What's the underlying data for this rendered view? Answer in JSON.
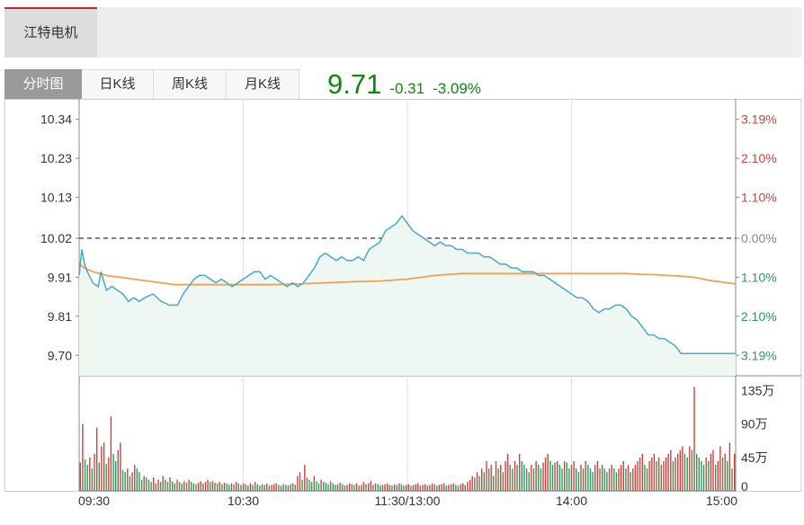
{
  "stock": {
    "name": "江特电机"
  },
  "tabs": [
    {
      "label": "分时图",
      "active": true
    },
    {
      "label": "日K线",
      "active": false
    },
    {
      "label": "周K线",
      "active": false
    },
    {
      "label": "月K线",
      "active": false
    }
  ],
  "quote": {
    "price": "9.71",
    "change": "-0.31",
    "change_pct": "-3.09%"
  },
  "colors": {
    "price_line": "#4aa8c8",
    "avg_line": "#f0a050",
    "up": "#d0403a",
    "down": "#2a9a5a",
    "grid": "#e0e0e0",
    "prev_close_line": "#555555"
  },
  "chart_data": {
    "type": "line",
    "price_axis": {
      "ylim": [
        9.65,
        10.39
      ],
      "left_ticks": [
        "10.34",
        "10.23",
        "10.13",
        "10.02",
        "9.91",
        "9.81",
        "9.70"
      ],
      "left_tick_values": [
        10.34,
        10.235,
        10.13,
        10.02,
        9.915,
        9.81,
        9.705
      ],
      "right_ticks": [
        {
          "label": "3.19%",
          "color": "up"
        },
        {
          "label": "2.10%",
          "color": "up"
        },
        {
          "label": "1.10%",
          "color": "up"
        },
        {
          "label": "0.00%",
          "color": "neutral"
        },
        {
          "label": "1.10%",
          "color": "down"
        },
        {
          "label": "2.10%",
          "color": "down"
        },
        {
          "label": "3.19%",
          "color": "down"
        }
      ],
      "prev_close": 10.02
    },
    "time_axis": {
      "labels": [
        "09:30",
        "10:30",
        "11:30/13:00",
        "14:00",
        "15:00"
      ],
      "label_minutes": [
        0,
        60,
        120,
        180,
        240
      ],
      "total_minutes": 240
    },
    "series": [
      {
        "key": "price",
        "x": [
          0,
          1,
          2,
          3,
          5,
          7,
          8,
          10,
          12,
          14,
          16,
          18,
          20,
          22,
          24,
          27,
          30,
          33,
          36,
          38,
          40,
          42,
          44,
          46,
          48,
          50,
          52,
          54,
          56,
          58,
          60,
          62,
          64,
          66,
          68,
          70,
          72,
          74,
          76,
          78,
          80,
          82,
          84,
          86,
          88,
          90,
          92,
          94,
          96,
          98,
          100,
          102,
          104,
          106,
          108,
          110,
          112,
          114,
          116,
          118,
          120,
          122,
          124,
          126,
          128,
          130,
          132,
          134,
          136,
          138,
          140,
          142,
          144,
          146,
          148,
          150,
          152,
          154,
          156,
          158,
          160,
          162,
          164,
          166,
          168,
          170,
          172,
          174,
          176,
          178,
          180,
          182,
          184,
          186,
          188,
          190,
          192,
          194,
          196,
          198,
          200,
          202,
          204,
          206,
          208,
          210,
          212,
          214,
          216,
          218,
          220,
          222,
          224,
          226,
          228,
          230,
          232,
          234,
          236,
          238,
          240
        ],
        "values": [
          9.92,
          9.99,
          9.95,
          9.93,
          9.9,
          9.89,
          9.93,
          9.88,
          9.89,
          9.88,
          9.87,
          9.85,
          9.86,
          9.85,
          9.86,
          9.87,
          9.85,
          9.84,
          9.84,
          9.87,
          9.89,
          9.91,
          9.92,
          9.92,
          9.91,
          9.9,
          9.91,
          9.9,
          9.89,
          9.9,
          9.91,
          9.92,
          9.93,
          9.93,
          9.91,
          9.92,
          9.91,
          9.9,
          9.89,
          9.9,
          9.89,
          9.9,
          9.92,
          9.94,
          9.97,
          9.98,
          9.97,
          9.96,
          9.97,
          9.96,
          9.96,
          9.97,
          9.96,
          9.99,
          10.0,
          10.01,
          10.04,
          10.05,
          10.06,
          10.08,
          10.06,
          10.04,
          10.03,
          10.02,
          10.01,
          10.0,
          10.01,
          10.0,
          10.0,
          9.99,
          9.99,
          9.98,
          9.98,
          9.98,
          9.97,
          9.97,
          9.96,
          9.95,
          9.95,
          9.94,
          9.94,
          9.93,
          9.93,
          9.93,
          9.92,
          9.92,
          9.91,
          9.9,
          9.89,
          9.88,
          9.87,
          9.86,
          9.86,
          9.85,
          9.83,
          9.82,
          9.83,
          9.83,
          9.84,
          9.84,
          9.83,
          9.81,
          9.8,
          9.78,
          9.76,
          9.76,
          9.75,
          9.75,
          9.74,
          9.73,
          9.71,
          9.71,
          9.71,
          9.71,
          9.71,
          9.71,
          9.71,
          9.71,
          9.71,
          9.71,
          9.71
        ]
      },
      {
        "key": "average",
        "x": [
          0,
          2,
          5,
          10,
          15,
          20,
          25,
          30,
          35,
          40,
          50,
          60,
          70,
          80,
          90,
          100,
          110,
          120,
          130,
          140,
          150,
          160,
          170,
          180,
          190,
          200,
          205,
          210,
          215,
          220,
          225,
          230,
          235,
          240
        ],
        "values": [
          9.95,
          9.94,
          9.93,
          9.92,
          9.915,
          9.91,
          9.905,
          9.9,
          9.895,
          9.895,
          9.895,
          9.895,
          9.895,
          9.897,
          9.9,
          9.903,
          9.905,
          9.91,
          9.92,
          9.925,
          9.925,
          9.925,
          9.925,
          9.925,
          9.925,
          9.925,
          9.923,
          9.922,
          9.92,
          9.918,
          9.915,
          9.907,
          9.902,
          9.897
        ]
      }
    ],
    "volume": {
      "axis_labels": [
        "135万",
        "90万",
        "45万",
        "0"
      ],
      "axis_values": [
        1350000,
        900000,
        450000,
        0
      ],
      "ymax": 1500000,
      "values": [
        380000,
        900000,
        420000,
        350000,
        450000,
        300000,
        500000,
        850000,
        380000,
        600000,
        650000,
        360000,
        450000,
        1000000,
        500000,
        400000,
        550000,
        650000,
        280000,
        250000,
        300000,
        200000,
        250000,
        350000,
        300000,
        250000,
        150000,
        200000,
        180000,
        150000,
        120000,
        180000,
        100000,
        150000,
        120000,
        200000,
        150000,
        120000,
        180000,
        130000,
        100000,
        150000,
        120000,
        100000,
        130000,
        110000,
        150000,
        120000,
        100000,
        90000,
        110000,
        130000,
        100000,
        120000,
        150000,
        120000,
        130000,
        110000,
        100000,
        120000,
        90000,
        110000,
        100000,
        80000,
        100000,
        90000,
        120000,
        100000,
        80000,
        100000,
        90000,
        70000,
        100000,
        80000,
        120000,
        90000,
        70000,
        90000,
        80000,
        100000,
        70000,
        80000,
        90000,
        100000,
        80000,
        70000,
        90000,
        80000,
        70000,
        90000,
        100000,
        80000,
        200000,
        250000,
        150000,
        350000,
        180000,
        150000,
        120000,
        200000,
        130000,
        100000,
        150000,
        120000,
        110000,
        90000,
        130000,
        100000,
        80000,
        90000,
        110000,
        90000,
        70000,
        80000,
        100000,
        90000,
        80000,
        100000,
        70000,
        80000,
        120000,
        90000,
        100000,
        130000,
        80000,
        100000,
        90000,
        70000,
        80000,
        90000,
        100000,
        80000,
        70000,
        90000,
        80000,
        100000,
        90000,
        70000,
        80000,
        90000,
        70000,
        80000,
        90000,
        100000,
        70000,
        80000,
        90000,
        70000,
        80000,
        100000,
        90000,
        70000,
        80000,
        90000,
        100000,
        70000,
        80000,
        90000,
        100000,
        80000,
        70000,
        90000,
        100000,
        80000,
        120000,
        150000,
        200000,
        180000,
        250000,
        200000,
        300000,
        250000,
        400000,
        300000,
        350000,
        200000,
        400000,
        300000,
        350000,
        250000,
        400000,
        500000,
        350000,
        300000,
        400000,
        350000,
        500000,
        400000,
        350000,
        300000,
        250000,
        350000,
        300000,
        400000,
        350000,
        300000,
        380000,
        450000,
        500000,
        400000,
        350000,
        380000,
        400000,
        350000,
        300000,
        400000,
        380000,
        300000,
        350000,
        400000,
        300000,
        250000,
        350000,
        300000,
        400000,
        350000,
        300000,
        250000,
        350000,
        400000,
        300000,
        350000,
        300000,
        250000,
        300000,
        350000,
        300000,
        250000,
        300000,
        350000,
        400000,
        300000,
        350000,
        250000,
        300000,
        350000,
        400000,
        450000,
        500000,
        350000,
        300000,
        400000,
        450000,
        500000,
        400000,
        450000,
        350000,
        400000,
        450000,
        500000,
        550000,
        400000,
        450000,
        500000,
        550000,
        600000,
        500000,
        450000,
        600000,
        550000,
        1400000,
        500000,
        450000,
        400000,
        350000,
        450000,
        400000,
        500000,
        550000,
        350000,
        400000,
        600000,
        450000,
        500000,
        400000,
        650000,
        300000,
        500000
      ]
    }
  }
}
